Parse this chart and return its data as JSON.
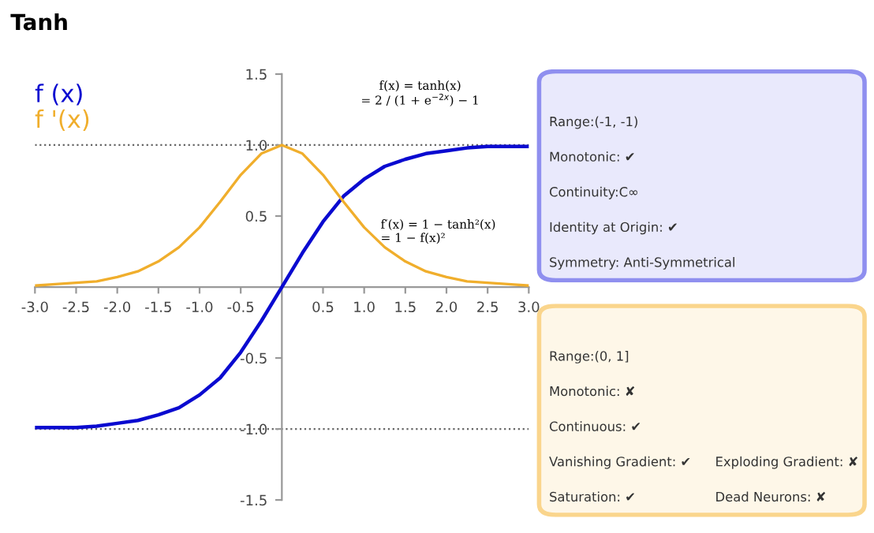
{
  "chart_data": [
    {
      "type": "line",
      "title": "Tanh",
      "x": [
        -3,
        -2.75,
        -2.5,
        -2.25,
        -2,
        -1.75,
        -1.5,
        -1.25,
        -1,
        -0.75,
        -0.5,
        -0.25,
        0,
        0.25,
        0.5,
        0.75,
        1,
        1.25,
        1.5,
        1.75,
        2,
        2.25,
        2.5,
        2.75,
        3
      ],
      "series": [
        {
          "name": "f (x)",
          "color": "#0a0ad0",
          "values": [
            -0.99,
            -0.99,
            -0.99,
            -0.98,
            -0.96,
            -0.94,
            -0.9,
            -0.85,
            -0.76,
            -0.64,
            -0.46,
            -0.24,
            0,
            0.24,
            0.46,
            0.64,
            0.76,
            0.85,
            0.9,
            0.94,
            0.96,
            0.98,
            0.99,
            0.99,
            0.99
          ]
        },
        {
          "name": "f '(x)",
          "color": "#f0ae2c",
          "values": [
            0.01,
            0.02,
            0.03,
            0.04,
            0.07,
            0.11,
            0.18,
            0.28,
            0.42,
            0.6,
            0.79,
            0.94,
            1,
            0.94,
            0.79,
            0.6,
            0.42,
            0.28,
            0.18,
            0.11,
            0.07,
            0.04,
            0.03,
            0.02,
            0.01
          ]
        }
      ],
      "xlim": [
        -3,
        3
      ],
      "ylim": [
        -1.5,
        1.5
      ],
      "xticks": [
        {
          "value": -3,
          "label": "-3.0"
        },
        {
          "value": -2.5,
          "label": "-2.5"
        },
        {
          "value": -2,
          "label": "-2.0"
        },
        {
          "value": -1.5,
          "label": "-1.5"
        },
        {
          "value": -1,
          "label": "-1.0"
        },
        {
          "value": -0.5,
          "label": "-0.5"
        },
        {
          "value": 0.5,
          "label": "0.5"
        },
        {
          "value": 1,
          "label": "1.0"
        },
        {
          "value": 1.5,
          "label": "1.5"
        },
        {
          "value": 2,
          "label": "2.0"
        },
        {
          "value": 2.5,
          "label": "2.5"
        },
        {
          "value": 3,
          "label": "3.0"
        }
      ],
      "yticks": [
        {
          "value": -1.5,
          "label": "-1.5"
        },
        {
          "value": -1,
          "label": "-1.0"
        },
        {
          "value": -0.5,
          "label": "-0.5"
        },
        {
          "value": 0.5,
          "label": "0.5"
        },
        {
          "value": 1,
          "label": "1.0"
        },
        {
          "value": 1.5,
          "label": "1.5"
        }
      ],
      "ref_lines": [
        {
          "axis": "y",
          "value": 1,
          "color": "#666666",
          "line_style": "dotted"
        },
        {
          "axis": "y",
          "value": -1,
          "color": "#666666",
          "line_style": "dotted"
        }
      ],
      "annotations": [
        "f(x) = tanh(x)\n= 2 / (1 + e$^{−2x}$) − 1",
        {
          "text": "f′(x) = 1 − tanh²(x)\n= 1 − f(x)²",
          "x": 1.2,
          "y": 0.3
        }
      ],
      "legend": "top left",
      "grid": false,
      "marker": "none",
      "line_style": "solid"
    },
    {
      "type": "other",
      "color": "#8f8fef",
      "annotations": [
        "Range:(-1, -1)",
        "Monotonic: ✔",
        "Continuity:C∞",
        "Identity at Origin: ✔",
        "Symmetry: Anti-Symmetrical"
      ]
    },
    {
      "type": "other",
      "color": "#fad58c",
      "annotations": [
        "Range:(0, 1]",
        "Monotonic: ✘",
        "Continuous: ✔",
        "Vanishing Gradient: ✔",
        "Exploding Gradient: ✘",
        "Saturation: ✔",
        "Dead Neurons: ✘"
      ]
    }
  ]
}
